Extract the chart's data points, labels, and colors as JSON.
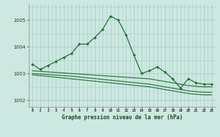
{
  "title": "Graphe pression niveau de la mer (hPa)",
  "background_color": "#cce8e0",
  "grid_color": "#aacccc",
  "line_color": "#1a6b2a",
  "x_labels": [
    "0",
    "1",
    "2",
    "3",
    "4",
    "5",
    "6",
    "7",
    "8",
    "9",
    "10",
    "11",
    "12",
    "13",
    "14",
    "15",
    "16",
    "17",
    "18",
    "19",
    "20",
    "21",
    "22",
    "23"
  ],
  "xlim": [
    -0.5,
    23.5
  ],
  "ylim": [
    1001.75,
    1005.6
  ],
  "yticks": [
    1002,
    1003,
    1004,
    1005
  ],
  "series1": [
    1003.35,
    1003.15,
    1003.3,
    1003.45,
    1003.6,
    1003.75,
    1004.1,
    1004.1,
    1004.35,
    1004.65,
    1005.15,
    1005.0,
    1004.45,
    1003.7,
    1003.0,
    1003.1,
    1003.25,
    1003.05,
    1002.8,
    1002.45,
    1002.8,
    1002.65,
    1002.6,
    1002.6
  ],
  "series2": [
    1003.1,
    1003.08,
    1003.06,
    1003.04,
    1003.02,
    1003.0,
    1002.98,
    1002.96,
    1002.94,
    1002.92,
    1002.9,
    1002.88,
    1002.86,
    1002.84,
    1002.82,
    1002.8,
    1002.75,
    1002.7,
    1002.65,
    1002.6,
    1002.55,
    1002.52,
    1002.5,
    1002.5
  ],
  "series3": [
    1003.0,
    1002.98,
    1002.96,
    1002.94,
    1002.92,
    1002.9,
    1002.87,
    1002.84,
    1002.81,
    1002.78,
    1002.75,
    1002.72,
    1002.69,
    1002.66,
    1002.63,
    1002.6,
    1002.55,
    1002.5,
    1002.45,
    1002.4,
    1002.35,
    1002.32,
    1002.3,
    1002.3
  ],
  "series4": [
    1002.95,
    1002.92,
    1002.89,
    1002.86,
    1002.83,
    1002.8,
    1002.77,
    1002.74,
    1002.71,
    1002.68,
    1002.65,
    1002.62,
    1002.59,
    1002.56,
    1002.53,
    1002.5,
    1002.45,
    1002.4,
    1002.35,
    1002.3,
    1002.25,
    1002.22,
    1002.2,
    1002.2
  ]
}
